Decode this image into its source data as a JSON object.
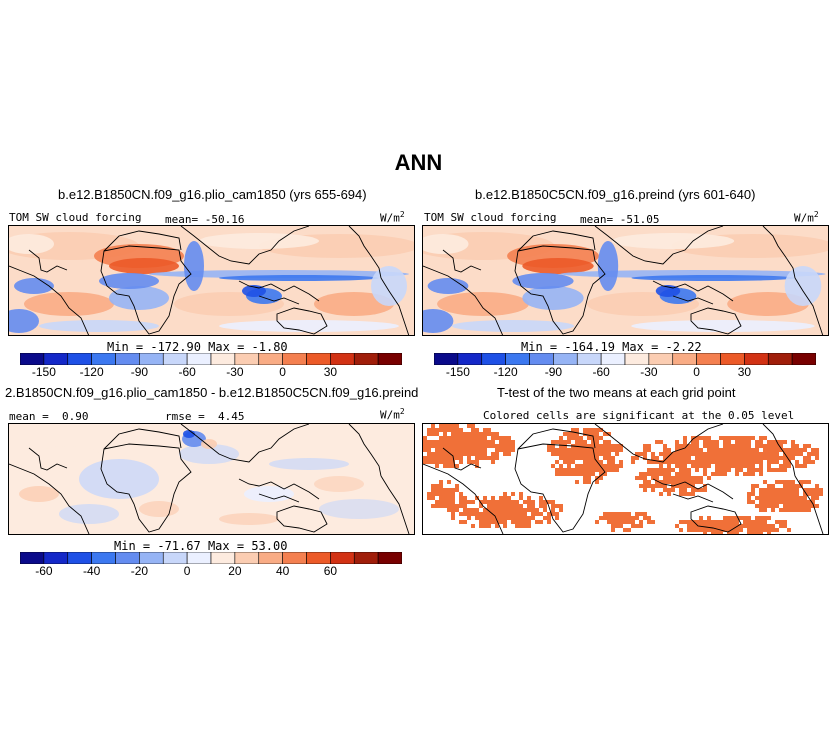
{
  "figure": {
    "title": "ANN",
    "panels": [
      {
        "title": "b.e12.B1850CN.f09_g16.plio_cam1850 (yrs 655-694)",
        "variable": "TOM SW cloud forcing",
        "mean_label": "mean=",
        "mean_value": "-50.16",
        "units": "W/m",
        "units_sup": "2",
        "min_label": "Min =",
        "min_value": "-172.90",
        "max_label": "Max =",
        "max_value": "-1.80"
      },
      {
        "title": "b.e12.B1850C5CN.f09_g16.preind (yrs 601-640)",
        "variable": "TOM SW cloud forcing",
        "mean_label": "mean=",
        "mean_value": "-51.05",
        "units": "W/m",
        "units_sup": "2",
        "min_label": "Min =",
        "min_value": "-164.19",
        "max_label": "Max =",
        "max_value": "-2.22"
      },
      {
        "title": "2.B1850CN.f09_g16.plio_cam1850 - b.e12.B1850C5CN.f09_g16.preind",
        "mean_label": "mean =",
        "mean_value": "0.90",
        "rmse_label": "rmse =",
        "rmse_value": "4.45",
        "units": "W/m",
        "units_sup": "2",
        "min_label": "Min =",
        "min_value": "-71.67",
        "max_label": "Max =",
        "max_value": "53.00"
      },
      {
        "title": "T-test of the two means at each grid point",
        "subtitle": "Colored cells are significant at the 0.05 level"
      }
    ],
    "colorbar_top": {
      "ticks": [
        "-150",
        "-120",
        "-90",
        "-60",
        "-30",
        "0",
        "30"
      ],
      "colors": [
        "#0a0a8a",
        "#1428c8",
        "#1e50e6",
        "#3c78f0",
        "#648cf0",
        "#96b4f5",
        "#c8d7fa",
        "#ebf0ff",
        "#fdebdf",
        "#fbcdb2",
        "#f9ac85",
        "#f48050",
        "#ec5a28",
        "#d23214",
        "#a01e0a",
        "#780000"
      ]
    },
    "colorbar_diff": {
      "ticks": [
        "-60",
        "-40",
        "-20",
        "0",
        "20",
        "40",
        "60"
      ],
      "colors": [
        "#0a0a8a",
        "#1428c8",
        "#1e50e6",
        "#3c78f0",
        "#648cf0",
        "#96b4f5",
        "#c8d7fa",
        "#ebf0ff",
        "#fdebdf",
        "#fbcdb2",
        "#f9ac85",
        "#f48050",
        "#ec5a28",
        "#d23214",
        "#a01e0a",
        "#780000"
      ]
    },
    "colors": {
      "ocean_base": "#fcdcc8",
      "diff_base": "#fdebdf",
      "ttest": "#f07038"
    }
  }
}
